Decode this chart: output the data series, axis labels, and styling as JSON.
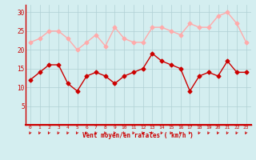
{
  "x": [
    0,
    1,
    2,
    3,
    4,
    5,
    6,
    7,
    8,
    9,
    10,
    11,
    12,
    13,
    14,
    15,
    16,
    17,
    18,
    19,
    20,
    21,
    22,
    23
  ],
  "avg_wind": [
    12,
    14,
    16,
    16,
    11,
    9,
    13,
    14,
    13,
    11,
    13,
    14,
    15,
    19,
    17,
    16,
    15,
    9,
    13,
    14,
    13,
    17,
    14,
    14
  ],
  "gust_wind": [
    22,
    23,
    25,
    25,
    23,
    20,
    22,
    24,
    21,
    26,
    23,
    22,
    22,
    26,
    26,
    25,
    24,
    27,
    26,
    26,
    29,
    30,
    27,
    22
  ],
  "avg_color": "#cc0000",
  "gust_color": "#ffaaaa",
  "background_color": "#d4eef0",
  "grid_color": "#b0d0d4",
  "xlabel": "Vent moyen/en rafales ( km/h )",
  "xlabel_color": "#cc0000",
  "ylabel_ticks": [
    5,
    10,
    15,
    20,
    25,
    30
  ],
  "ylim": [
    0,
    32
  ],
  "xlim": [
    -0.5,
    23.5
  ],
  "marker": "D",
  "markersize": 2.5,
  "linewidth": 1.0,
  "spine_color": "#cc0000",
  "red_line_y": 0
}
